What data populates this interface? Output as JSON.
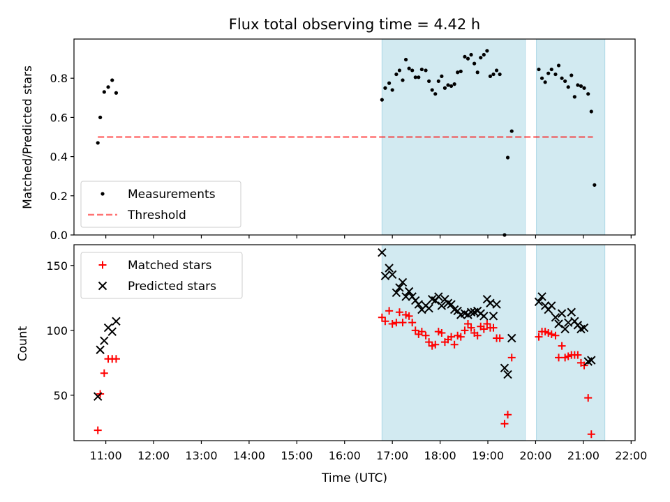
{
  "figure": {
    "title": "Flux total observing time = 4.42 h"
  },
  "colors": {
    "shade": "#add8e6",
    "measurement": "#000000",
    "threshold": "#ff0000",
    "matched": "#ff0000",
    "predicted": "#000000"
  },
  "chart_data": [
    {
      "type": "scatter",
      "panel": "top",
      "title": "Flux total observing time = 4.42 h",
      "xlabel": "",
      "ylabel": "Matched/Predicted stars",
      "xlim": [
        "10:20",
        "22:05"
      ],
      "ylim": [
        0,
        1.0
      ],
      "yticks": [
        0.0,
        0.2,
        0.4,
        0.6,
        0.8
      ],
      "ytick_labels": [
        "0.0",
        "0.2",
        "0.4",
        "0.6",
        "0.8"
      ],
      "shaded_spans": [
        [
          "16:47",
          "19:47"
        ],
        [
          "20:01",
          "21:27"
        ]
      ],
      "legend": {
        "placement": "lower-left",
        "entries": [
          "Measurements",
          "Threshold"
        ]
      },
      "series": [
        {
          "name": "Measurements",
          "marker": "dot",
          "points": [
            [
              "10:50",
              0.47
            ],
            [
              "10:53",
              0.6
            ],
            [
              "10:58",
              0.73
            ],
            [
              "11:03",
              0.755
            ],
            [
              "11:08",
              0.79
            ],
            [
              "11:13",
              0.725
            ],
            [
              "16:47",
              0.69
            ],
            [
              "16:51",
              0.75
            ],
            [
              "16:56",
              0.775
            ],
            [
              "17:00",
              0.74
            ],
            [
              "17:05",
              0.82
            ],
            [
              "17:09",
              0.84
            ],
            [
              "17:13",
              0.79
            ],
            [
              "17:17",
              0.895
            ],
            [
              "17:21",
              0.85
            ],
            [
              "17:25",
              0.84
            ],
            [
              "17:29",
              0.805
            ],
            [
              "17:33",
              0.805
            ],
            [
              "17:37",
              0.845
            ],
            [
              "17:42",
              0.84
            ],
            [
              "17:46",
              0.785
            ],
            [
              "17:50",
              0.74
            ],
            [
              "17:54",
              0.72
            ],
            [
              "17:58",
              0.785
            ],
            [
              "18:02",
              0.81
            ],
            [
              "18:06",
              0.75
            ],
            [
              "18:10",
              0.765
            ],
            [
              "18:14",
              0.76
            ],
            [
              "18:18",
              0.77
            ],
            [
              "18:22",
              0.83
            ],
            [
              "18:26",
              0.835
            ],
            [
              "18:31",
              0.91
            ],
            [
              "18:35",
              0.9
            ],
            [
              "18:39",
              0.92
            ],
            [
              "18:43",
              0.875
            ],
            [
              "18:47",
              0.83
            ],
            [
              "18:51",
              0.905
            ],
            [
              "18:55",
              0.92
            ],
            [
              "18:59",
              0.94
            ],
            [
              "19:03",
              0.81
            ],
            [
              "19:07",
              0.82
            ],
            [
              "19:11",
              0.84
            ],
            [
              "19:15",
              0.82
            ],
            [
              "19:21",
              0.0
            ],
            [
              "19:25",
              0.395
            ],
            [
              "19:30",
              0.53
            ],
            [
              "20:04",
              0.845
            ],
            [
              "20:08",
              0.8
            ],
            [
              "20:12",
              0.78
            ],
            [
              "20:16",
              0.825
            ],
            [
              "20:20",
              0.845
            ],
            [
              "20:25",
              0.82
            ],
            [
              "20:29",
              0.865
            ],
            [
              "20:33",
              0.8
            ],
            [
              "20:37",
              0.785
            ],
            [
              "20:41",
              0.755
            ],
            [
              "20:45",
              0.815
            ],
            [
              "20:49",
              0.705
            ],
            [
              "20:53",
              0.765
            ],
            [
              "20:57",
              0.76
            ],
            [
              "21:01",
              0.75
            ],
            [
              "21:06",
              0.72
            ],
            [
              "21:10",
              0.63
            ],
            [
              "21:14",
              0.255
            ]
          ]
        },
        {
          "name": "Threshold",
          "marker": "dashed-line",
          "points": [
            [
              "10:50",
              0.5
            ],
            [
              "21:12",
              0.5
            ]
          ]
        }
      ]
    },
    {
      "type": "scatter",
      "panel": "bottom",
      "xlabel": "Time (UTC)",
      "ylabel": "Count",
      "xlim": [
        "10:20",
        "22:05"
      ],
      "xticks": [
        "11:00",
        "12:00",
        "13:00",
        "14:00",
        "15:00",
        "16:00",
        "17:00",
        "18:00",
        "19:00",
        "20:00",
        "21:00",
        "22:00"
      ],
      "ylim": [
        15,
        166
      ],
      "yticks": [
        50,
        100,
        150
      ],
      "ytick_labels": [
        "50",
        "100",
        "150"
      ],
      "shaded_spans": [
        [
          "16:47",
          "19:47"
        ],
        [
          "20:01",
          "21:27"
        ]
      ],
      "legend": {
        "placement": "upper-left",
        "entries": [
          "Matched stars",
          "Predicted stars"
        ]
      },
      "series": [
        {
          "name": "Matched stars",
          "marker": "plus",
          "points": [
            [
              "10:50",
              23
            ],
            [
              "10:53",
              51
            ],
            [
              "10:58",
              67
            ],
            [
              "11:03",
              78
            ],
            [
              "11:08",
              78
            ],
            [
              "11:13",
              78
            ],
            [
              "16:47",
              110
            ],
            [
              "16:51",
              107
            ],
            [
              "16:56",
              115
            ],
            [
              "17:00",
              105
            ],
            [
              "17:05",
              106
            ],
            [
              "17:09",
              114
            ],
            [
              "17:13",
              106
            ],
            [
              "17:17",
              112
            ],
            [
              "17:21",
              111
            ],
            [
              "17:25",
              106
            ],
            [
              "17:29",
              100
            ],
            [
              "17:33",
              97
            ],
            [
              "17:37",
              99
            ],
            [
              "17:42",
              96
            ],
            [
              "17:46",
              91
            ],
            [
              "17:50",
              88
            ],
            [
              "17:54",
              89
            ],
            [
              "17:58",
              99
            ],
            [
              "18:02",
              98
            ],
            [
              "18:06",
              91
            ],
            [
              "18:10",
              93
            ],
            [
              "18:14",
              95
            ],
            [
              "18:18",
              89
            ],
            [
              "18:22",
              96
            ],
            [
              "18:26",
              95
            ],
            [
              "18:31",
              100
            ],
            [
              "18:35",
              105
            ],
            [
              "18:39",
              102
            ],
            [
              "18:43",
              98
            ],
            [
              "18:47",
              96
            ],
            [
              "18:51",
              103
            ],
            [
              "18:55",
              101
            ],
            [
              "18:59",
              105
            ],
            [
              "19:03",
              102
            ],
            [
              "19:07",
              102
            ],
            [
              "19:11",
              94
            ],
            [
              "19:15",
              94
            ],
            [
              "19:21",
              28
            ],
            [
              "19:25",
              35
            ],
            [
              "19:30",
              79
            ],
            [
              "20:04",
              95
            ],
            [
              "20:08",
              99
            ],
            [
              "20:12",
              99
            ],
            [
              "20:16",
              98
            ],
            [
              "20:20",
              97
            ],
            [
              "20:25",
              96
            ],
            [
              "20:29",
              79
            ],
            [
              "20:33",
              88
            ],
            [
              "20:37",
              79
            ],
            [
              "20:41",
              80
            ],
            [
              "20:45",
              81
            ],
            [
              "20:49",
              81
            ],
            [
              "20:53",
              81
            ],
            [
              "20:57",
              75
            ],
            [
              "21:01",
              73
            ],
            [
              "21:06",
              48
            ],
            [
              "21:10",
              20
            ]
          ]
        },
        {
          "name": "Predicted stars",
          "marker": "x",
          "points": [
            [
              "10:50",
              49
            ],
            [
              "10:53",
              85
            ],
            [
              "10:58",
              92
            ],
            [
              "11:03",
              102
            ],
            [
              "11:08",
              99
            ],
            [
              "11:13",
              107
            ],
            [
              "16:47",
              160
            ],
            [
              "16:51",
              142
            ],
            [
              "16:56",
              148
            ],
            [
              "17:00",
              143
            ],
            [
              "17:05",
              129
            ],
            [
              "17:09",
              133
            ],
            [
              "17:13",
              137
            ],
            [
              "17:17",
              126
            ],
            [
              "17:21",
              130
            ],
            [
              "17:25",
              126
            ],
            [
              "17:29",
              123
            ],
            [
              "17:33",
              120
            ],
            [
              "17:37",
              116
            ],
            [
              "17:42",
              119
            ],
            [
              "17:46",
              117
            ],
            [
              "17:50",
              124
            ],
            [
              "17:54",
              123
            ],
            [
              "17:58",
              126
            ],
            [
              "18:02",
              119
            ],
            [
              "18:06",
              124
            ],
            [
              "18:10",
              121
            ],
            [
              "18:14",
              120
            ],
            [
              "18:18",
              116
            ],
            [
              "18:22",
              115
            ],
            [
              "18:26",
              112
            ],
            [
              "18:31",
              113
            ],
            [
              "18:35",
              112
            ],
            [
              "18:39",
              114
            ],
            [
              "18:43",
              114
            ],
            [
              "18:47",
              115
            ],
            [
              "18:51",
              113
            ],
            [
              "18:55",
              111
            ],
            [
              "18:59",
              124
            ],
            [
              "19:03",
              121
            ],
            [
              "19:07",
              111
            ],
            [
              "19:11",
              120
            ],
            [
              "19:21",
              71
            ],
            [
              "19:25",
              66
            ],
            [
              "19:30",
              94
            ],
            [
              "20:04",
              122
            ],
            [
              "20:08",
              126
            ],
            [
              "20:12",
              119
            ],
            [
              "20:16",
              116
            ],
            [
              "20:20",
              119
            ],
            [
              "20:25",
              110
            ],
            [
              "20:29",
              105
            ],
            [
              "20:33",
              113
            ],
            [
              "20:37",
              101
            ],
            [
              "20:41",
              106
            ],
            [
              "20:45",
              114
            ],
            [
              "20:49",
              107
            ],
            [
              "20:53",
              104
            ],
            [
              "20:57",
              101
            ],
            [
              "21:01",
              102
            ],
            [
              "21:06",
              76
            ],
            [
              "21:10",
              77
            ]
          ]
        }
      ]
    }
  ]
}
